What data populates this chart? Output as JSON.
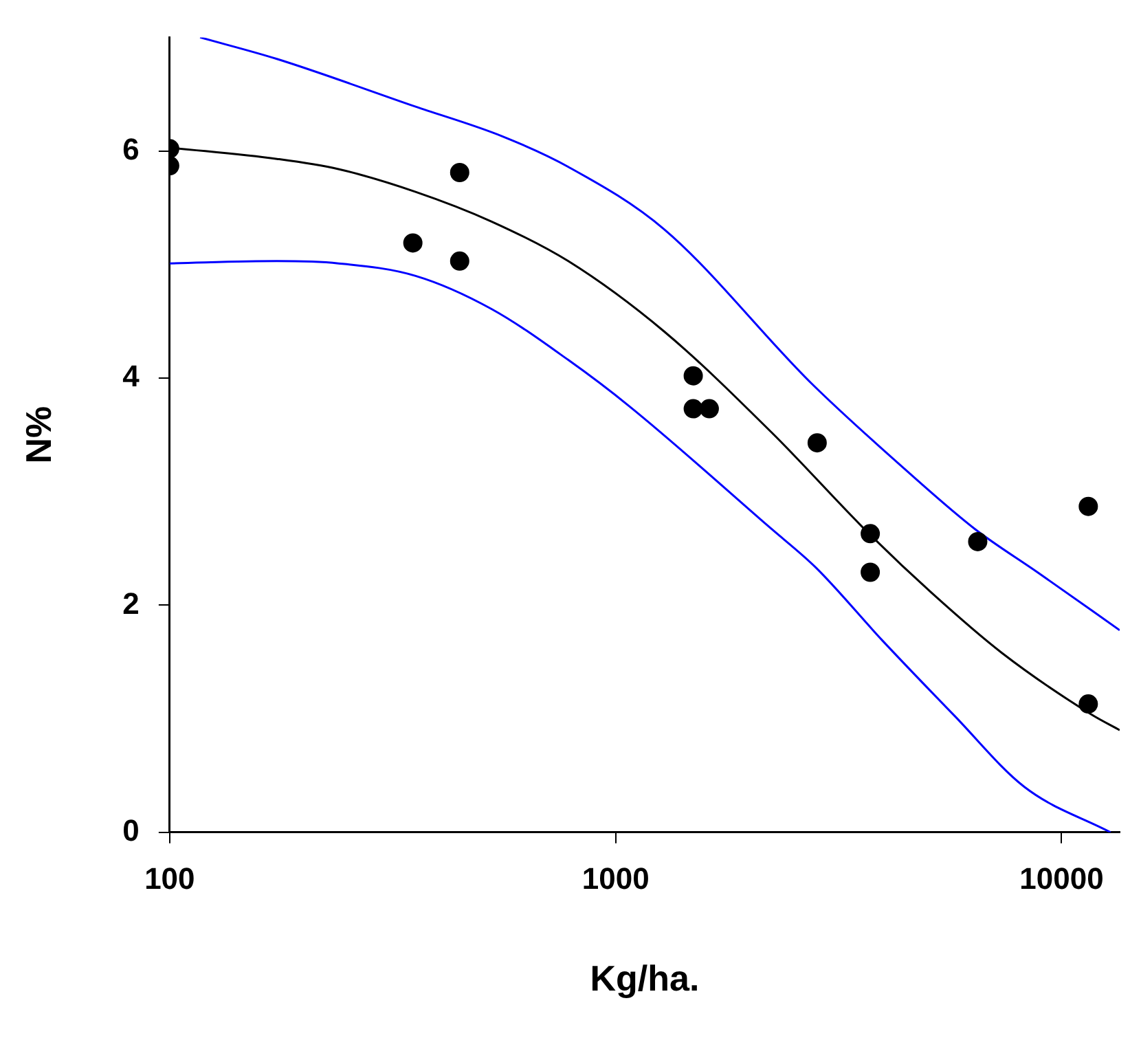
{
  "chart_data": {
    "type": "scatter",
    "xlabel": "Kg/ha.",
    "ylabel": "N%",
    "log": "x",
    "xlim": [
      100,
      13500
    ],
    "xticks": [
      100,
      1000,
      10000
    ],
    "ylim": [
      0,
      7
    ],
    "yticks": [
      0,
      2,
      4,
      6
    ],
    "grid": false,
    "legend": false,
    "series": [
      {
        "type": "scatter",
        "color": "#000000",
        "marker": "circle",
        "x": [
          100,
          100,
          351,
          447,
          447,
          1493,
          1493,
          1622,
          2831,
          3724,
          3724,
          6486,
          11480,
          11480
        ],
        "values": [
          6.02,
          5.87,
          5.19,
          5.81,
          5.03,
          4.02,
          3.73,
          3.73,
          3.43,
          2.63,
          2.29,
          2.56,
          2.87,
          1.13
        ]
      },
      {
        "type": "line",
        "color": "#000000",
        "line_style": "solid",
        "marker": "none",
        "x": [
          100,
          174,
          239,
          356,
          526,
          783,
          1285,
          2239,
          3700,
          5107,
          7345,
          11640,
          13500
        ],
        "values": [
          6.03,
          5.93,
          5.84,
          5.64,
          5.38,
          5.03,
          4.41,
          3.52,
          2.63,
          2.11,
          1.58,
          1.04,
          0.9
        ]
      },
      {
        "type": "line",
        "color": "#0000ff",
        "line_style": "solid",
        "marker": "none",
        "x": [
          117,
          174,
          356,
          556,
          783,
          1285,
          2754,
          4446,
          6397,
          8831,
          13500
        ],
        "values": [
          7.0,
          6.81,
          6.39,
          6.13,
          5.86,
          5.31,
          3.95,
          3.2,
          2.67,
          2.29,
          1.78
        ]
      },
      {
        "type": "line",
        "color": "#0000ff",
        "line_style": "solid",
        "marker": "none",
        "x": [
          100,
          174,
          239,
          356,
          526,
          783,
          1075,
          2239,
          2814,
          3963,
          5741,
          8254,
          12880
        ],
        "values": [
          5.01,
          5.03,
          5.01,
          4.9,
          4.61,
          4.16,
          3.75,
          2.67,
          2.33,
          1.69,
          1.03,
          0.4,
          0
        ]
      }
    ]
  }
}
